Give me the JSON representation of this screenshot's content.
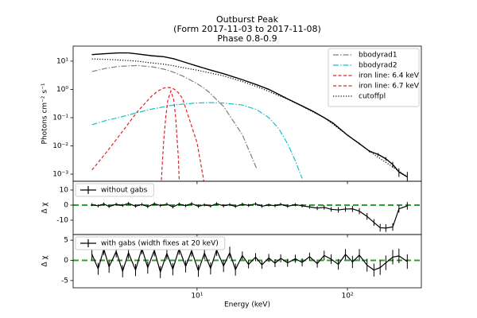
{
  "chart_data": [
    {
      "type": "line",
      "title": "Outburst Peak",
      "subtitle": [
        "(Form 2017-11-03 to 2017-11-08)",
        "Phase 0.8-0.9"
      ],
      "ylabel": "Photons cm⁻² s⁻¹",
      "yscale": "log",
      "ylim": [
        0.00056,
        34
      ],
      "yticks": [
        {
          "value": 0.001,
          "label": "10⁻³"
        },
        {
          "value": 0.01,
          "label": "10⁻²"
        },
        {
          "value": 0.1,
          "label": "10⁻¹"
        },
        {
          "value": 1,
          "label": "10⁰"
        },
        {
          "value": 10,
          "label": "10¹"
        }
      ],
      "legend": "upper right",
      "x": [
        2,
        2.5,
        3,
        4,
        5,
        5.5,
        6,
        6.2,
        6.4,
        6.7,
        7,
        7.2,
        7.5,
        8,
        10,
        11,
        12,
        15,
        20,
        25,
        30,
        35,
        40,
        45,
        50,
        70,
        100,
        150,
        200,
        250
      ],
      "series": [
        {
          "name": "bbodyrad1",
          "color": "#7f7f7f",
          "linestyle": "dashdot",
          "values": [
            4.3,
            5.6,
            6.5,
            7,
            6.3,
            5.8,
            5.2,
            5,
            4.7,
            4.4,
            4,
            3.8,
            3.4,
            3,
            1.6,
            1.15,
            0.8,
            0.25,
            0.025,
            0.0015,
            null,
            null,
            null,
            null,
            null,
            null,
            null,
            null,
            null,
            null
          ]
        },
        {
          "name": "bbodyrad2",
          "color": "#17becf",
          "linestyle": "dashdot",
          "values": [
            0.056,
            0.08,
            0.1,
            0.15,
            0.2,
            0.22,
            0.24,
            0.25,
            0.26,
            0.27,
            0.28,
            0.285,
            0.29,
            0.3,
            0.33,
            0.335,
            0.34,
            0.33,
            0.28,
            0.19,
            0.1,
            0.04,
            0.012,
            0.003,
            0.0007,
            null,
            null,
            null,
            null,
            null
          ]
        },
        {
          "name": "iron line: 6.4 keV",
          "color": "#d62728",
          "linestyle": "dashed",
          "values": [
            0.0014,
            0.006,
            0.021,
            0.16,
            0.59,
            0.88,
            1.11,
            1.15,
            1.17,
            1.13,
            1.03,
            0.94,
            0.77,
            0.48,
            0.013,
            0.00075,
            2e-05,
            null,
            null,
            null,
            null,
            null,
            null,
            null,
            null,
            null,
            null,
            null,
            null,
            null
          ]
        },
        {
          "name": "iron line: 6.7 keV",
          "color": "#d62728",
          "linestyle": "dashed",
          "values": [
            null,
            null,
            null,
            null,
            null,
            6e-06,
            0.015,
            0.11,
            0.42,
            0.88,
            0.42,
            0.11,
            0.0043,
            7e-07,
            null,
            null,
            null,
            null,
            null,
            null,
            null,
            null,
            null,
            null,
            null,
            null,
            null,
            null,
            null,
            null
          ]
        },
        {
          "name": "cutoffpl",
          "color": "#000000",
          "linestyle": "dotted",
          "values": [
            12,
            11.5,
            11,
            10,
            8.6,
            8.2,
            7.8,
            7.6,
            7.4,
            7.1,
            6.8,
            6.6,
            6.3,
            5.9,
            4.8,
            4.3,
            3.9,
            3,
            1.9,
            1.25,
            0.85,
            0.6,
            0.45,
            0.33,
            0.25,
            0.1,
            0.024,
            0.005,
            0.0018,
            0.0008
          ]
        }
      ],
      "observed": {
        "color": "#000000",
        "x": [
          2,
          2.5,
          3,
          3.5,
          4,
          5,
          6,
          7,
          8,
          10,
          12,
          15,
          20,
          25,
          30,
          40,
          50,
          60,
          70,
          80,
          100,
          120,
          140,
          160,
          180,
          200,
          220,
          250
        ],
        "values": [
          17,
          18.5,
          19.5,
          19.5,
          18,
          15.5,
          14.4,
          12.1,
          9.7,
          6.7,
          5,
          3.6,
          2.2,
          1.45,
          1,
          0.46,
          0.26,
          0.16,
          0.1,
          0.065,
          0.024,
          0.012,
          0.0065,
          0.005,
          0.0035,
          0.0022,
          0.0012,
          0.0008
        ],
        "errors": [
          0.2,
          0.2,
          0.2,
          0.2,
          0.2,
          0.2,
          0.2,
          0.15,
          0.12,
          0.08,
          0.06,
          0.05,
          0.03,
          0.02,
          0.015,
          0.008,
          0.005,
          0.004,
          0.003,
          0.002,
          0.001,
          0.0008,
          0.0006,
          0.0006,
          0.0005,
          0.0005,
          0.0004,
          0.0004
        ]
      }
    },
    {
      "type": "errorbar",
      "ylabel": "Δ χ",
      "ylim": [
        -19.5,
        15.8
      ],
      "yticks": [
        -10,
        0,
        10
      ],
      "reference_line": {
        "value": 0,
        "color": "#2ca02c"
      },
      "legend": "upper left",
      "x": [
        2,
        2.2,
        2.4,
        2.6,
        2.9,
        3.2,
        3.5,
        3.9,
        4.3,
        4.7,
        5.2,
        5.7,
        6.3,
        6.9,
        7.6,
        8.4,
        9.2,
        10.2,
        11.2,
        12.3,
        13.5,
        15,
        16.5,
        18,
        20,
        22,
        24.5,
        27,
        30,
        33,
        36,
        40,
        45,
        50,
        56,
        63,
        70,
        78,
        87,
        97,
        108,
        120,
        135,
        150,
        165,
        180,
        200,
        220,
        250
      ],
      "series": [
        {
          "name": "without gabs",
          "color": "#000000",
          "values": [
            0.3,
            -0.5,
            0.8,
            -0.9,
            0.5,
            -0.2,
            1.1,
            -0.7,
            0.4,
            -1.0,
            0.9,
            -0.3,
            0.6,
            -1.2,
            0.7,
            -0.4,
            1.0,
            -0.8,
            0.2,
            -0.6,
            0.9,
            -0.5,
            0.3,
            -0.9,
            0.6,
            -0.2,
            0.8,
            -0.7,
            0.1,
            -0.4,
            0.5,
            -0.8,
            0.3,
            -0.5,
            -1.2,
            -2.0,
            -1.5,
            -2.8,
            -3.2,
            -2.6,
            -2.5,
            -4.0,
            -7.5,
            -11.5,
            -15.0,
            -15.2,
            -14.5,
            -2.5,
            -0.5
          ],
          "errors": [
            1,
            1,
            1,
            1,
            1,
            1,
            1,
            1,
            1,
            1,
            1,
            1,
            1,
            1,
            1,
            1,
            1,
            1,
            1,
            1,
            1,
            1,
            1,
            1,
            1,
            1,
            1,
            1,
            1,
            1,
            1,
            1,
            1,
            1,
            1.2,
            1.3,
            1.5,
            1.5,
            1.8,
            1.8,
            2,
            2,
            2.2,
            2.2,
            2.5,
            2.5,
            2.5,
            2.5,
            2.5
          ]
        }
      ]
    },
    {
      "type": "errorbar",
      "ylabel": "Δ χ",
      "xlabel": "Energy (keV)",
      "xscale": "log",
      "xlim": [
        1.5,
        310
      ],
      "xticks": [
        {
          "value": 10,
          "label": "10¹"
        },
        {
          "value": 100,
          "label": "10²"
        }
      ],
      "ylim": [
        -6.8,
        6.4
      ],
      "yticks": [
        -5,
        0,
        5
      ],
      "reference_line": {
        "value": 0,
        "color": "#2ca02c"
      },
      "legend": "upper left",
      "x": [
        2,
        2.2,
        2.4,
        2.6,
        2.9,
        3.2,
        3.5,
        3.9,
        4.3,
        4.7,
        5.2,
        5.7,
        6.3,
        6.9,
        7.6,
        8.4,
        9.2,
        10.2,
        11.2,
        12.3,
        13.5,
        15,
        16.5,
        18,
        20,
        22,
        24.5,
        27,
        30,
        33,
        36,
        40,
        45,
        50,
        56,
        63,
        70,
        78,
        87,
        97,
        108,
        120,
        135,
        150,
        165,
        180,
        200,
        220,
        250
      ],
      "series": [
        {
          "name": "with gabs (width fixes at 20 keV)",
          "color": "#000000",
          "values": [
            1.5,
            -2.1,
            2.8,
            -1.6,
            2.2,
            -2.7,
            1.9,
            -2.4,
            3.0,
            -1.8,
            2.5,
            -2.9,
            1.7,
            -2.2,
            2.9,
            -1.5,
            2.4,
            -2.6,
            1.8,
            -2.0,
            2.6,
            -1.4,
            1.9,
            -2.3,
            1.2,
            -1.0,
            0.8,
            -1.1,
            0.6,
            -0.7,
            0.5,
            -0.6,
            0.4,
            -0.5,
            0.9,
            -0.8,
            1.2,
            0.3,
            -1.0,
            1.5,
            -0.4,
            1.3,
            -1.2,
            -2.4,
            -1.8,
            -0.6,
            0.8,
            1.1,
            -0.3
          ],
          "errors": [
            1.5,
            1.5,
            1.5,
            1.5,
            1.5,
            1.5,
            1.5,
            1.5,
            1.5,
            1.5,
            1.5,
            1.5,
            1.5,
            1.5,
            1.5,
            1.5,
            1.5,
            1.5,
            1.5,
            1.5,
            1.5,
            1.5,
            1.5,
            1.5,
            1,
            1,
            1,
            1,
            1,
            1,
            1,
            1,
            1,
            1,
            1,
            1,
            1.2,
            1.2,
            1.3,
            1.3,
            1.5,
            1.5,
            1.6,
            1.6,
            1.8,
            1.8,
            1.8,
            1.8,
            1.8
          ]
        }
      ]
    }
  ]
}
